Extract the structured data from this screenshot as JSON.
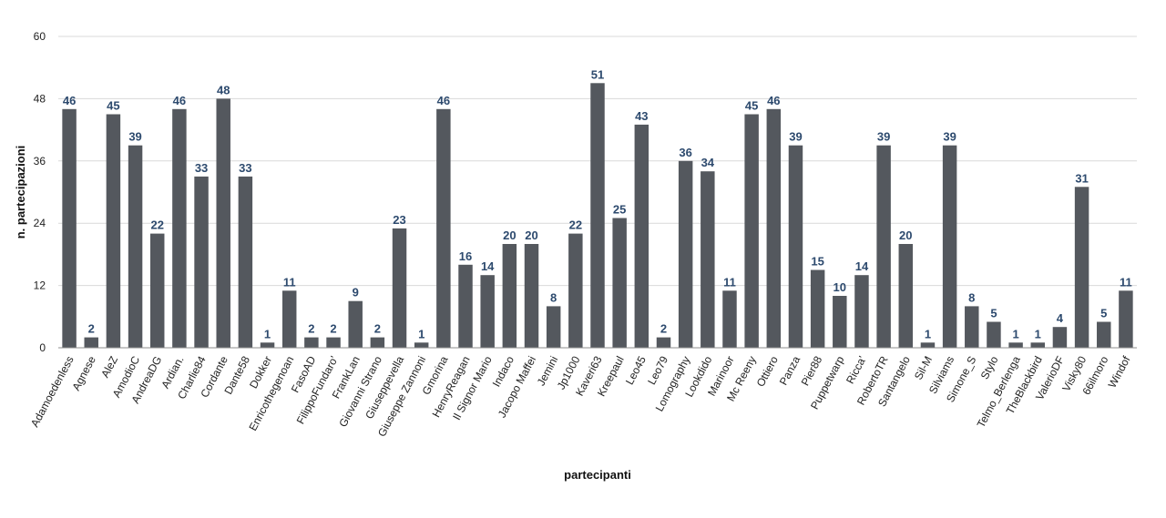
{
  "chart_data": {
    "type": "bar",
    "xlabel": "partecipanti",
    "ylabel": "n. partecipazioni",
    "ylim": [
      0,
      60
    ],
    "yticks": [
      0,
      12,
      24,
      36,
      48,
      60
    ],
    "grid": true,
    "bar_color": "#54585e",
    "label_color": "#2d4a6e",
    "categories": [
      "Adamoedenless",
      "Agnese",
      "AleZ",
      "AmodioC",
      "AndreaDG",
      "Ardian.",
      "Charlie84",
      "Cordante",
      "Dante58",
      "Dokker",
      "Enricothegenoan",
      "FasoAD",
      "FilippoFundaro'",
      "FrankLan",
      "Giovanni Strano",
      "Giuseppevella",
      "Giuseppe Zannoni",
      "Gmorina",
      "HenryReagan",
      "Il Signor Mario",
      "Indaco",
      "Jacopo Maffei",
      "Jemini",
      "Jp1000",
      "Kaveri63",
      "Kreepaul",
      "Leo45",
      "Leo79",
      "Lomography",
      "Lookdido",
      "Marinoor",
      "Mc Reeny",
      "Ottiero",
      "Panza",
      "Pier88",
      "Puppetwarp",
      "Ricca'",
      "RobertoTR",
      "Santangelo",
      "Sil-M",
      "Silviams",
      "Simone_S",
      "Stylo",
      "Telmo_Berlenga",
      "TheBlackbird",
      "ValerioDF",
      "Visky80",
      "66ilmoro",
      "Windof"
    ],
    "values": [
      46,
      2,
      45,
      39,
      22,
      46,
      33,
      48,
      33,
      1,
      11,
      2,
      2,
      9,
      2,
      23,
      1,
      46,
      16,
      14,
      20,
      20,
      8,
      22,
      51,
      25,
      43,
      2,
      36,
      34,
      11,
      45,
      46,
      39,
      15,
      10,
      14,
      39,
      20,
      1,
      39,
      8,
      5,
      1,
      1,
      4,
      31,
      5,
      11
    ]
  }
}
